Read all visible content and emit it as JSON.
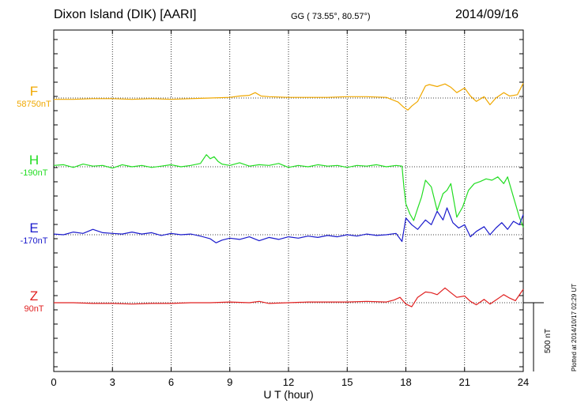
{
  "header": {
    "station": "Dixon Island (DIK)  [AARI]",
    "coords": "GG ( 73.55°,  80.57°)",
    "date": "2014/09/16"
  },
  "plotted_note": "Plotted at 2014/10/17 02:29 UT",
  "chart_data": {
    "type": "line",
    "xlabel": "U T (hour)",
    "xlim": [
      0,
      24
    ],
    "xticks": [
      0,
      3,
      6,
      9,
      12,
      15,
      18,
      21,
      24
    ],
    "ylabel": "",
    "scale_bar_label": "500 nT",
    "grid": true,
    "series": [
      {
        "name": "F",
        "baseline_label": "58750nT",
        "color": "#f0a800",
        "x": [
          0,
          1,
          2,
          3,
          4,
          5,
          6,
          7,
          8,
          9,
          9.5,
          10,
          10.3,
          10.6,
          11,
          12,
          13,
          14,
          15,
          16,
          17,
          17.6,
          17.9,
          18.1,
          18.3,
          18.6,
          19,
          19.2,
          19.6,
          20,
          20.3,
          20.6,
          21,
          21.3,
          21.6,
          22,
          22.3,
          22.6,
          23,
          23.3,
          23.7,
          24
        ],
        "values": [
          -2,
          -2,
          -1,
          -1,
          -2,
          -1,
          -2,
          -1,
          0,
          1,
          3,
          4,
          8,
          3,
          2,
          1,
          1,
          1,
          2,
          2,
          1,
          -6,
          -14,
          -18,
          -12,
          -5,
          18,
          20,
          17,
          21,
          16,
          8,
          15,
          3,
          -5,
          2,
          -10,
          0,
          8,
          3,
          5,
          22
        ]
      },
      {
        "name": "H",
        "baseline_label": "-190nT",
        "color": "#22dd22",
        "x": [
          0,
          0.5,
          1,
          1.5,
          2,
          2.5,
          3,
          3.5,
          4,
          4.5,
          5,
          5.5,
          6,
          6.5,
          7,
          7.5,
          7.8,
          8,
          8.2,
          8.4,
          8.6,
          9,
          9.5,
          10,
          10.5,
          11,
          11.5,
          12,
          12.5,
          13,
          13.5,
          14,
          14.5,
          15,
          15.5,
          16,
          16.5,
          17,
          17.5,
          17.8,
          17.9,
          18,
          18.2,
          18.4,
          18.6,
          18.8,
          19,
          19.3,
          19.6,
          19.9,
          20.1,
          20.3,
          20.6,
          20.9,
          21.2,
          21.5,
          21.8,
          22.1,
          22.4,
          22.7,
          23,
          23.2,
          23.5,
          23.8,
          24
        ],
        "values": [
          2,
          3,
          -1,
          4,
          1,
          2,
          -2,
          3,
          0,
          2,
          -1,
          1,
          3,
          0,
          2,
          5,
          18,
          12,
          15,
          8,
          4,
          2,
          6,
          1,
          3,
          2,
          5,
          -1,
          2,
          0,
          3,
          1,
          2,
          -1,
          2,
          1,
          3,
          0,
          2,
          1,
          -30,
          -55,
          -70,
          -80,
          -62,
          -45,
          -20,
          -30,
          -65,
          -40,
          -35,
          -25,
          -75,
          -60,
          -35,
          -25,
          -22,
          -18,
          -20,
          -15,
          -25,
          -15,
          -45,
          -75,
          -90
        ]
      },
      {
        "name": "E",
        "baseline_label": "-170nT",
        "color": "#1a1acc",
        "x": [
          0,
          0.5,
          1,
          1.5,
          2,
          2.5,
          3,
          3.5,
          4,
          4.5,
          5,
          5.5,
          6,
          6.5,
          7,
          7.5,
          8,
          8.3,
          8.6,
          9,
          9.5,
          10,
          10.5,
          11,
          11.5,
          12,
          12.5,
          13,
          13.5,
          14,
          14.5,
          15,
          15.5,
          16,
          16.5,
          17,
          17.5,
          17.8,
          18,
          18.3,
          18.6,
          19,
          19.3,
          19.6,
          19.9,
          20.1,
          20.4,
          20.7,
          21,
          21.3,
          21.6,
          22,
          22.3,
          22.6,
          22.9,
          23.2,
          23.5,
          23.8,
          24
        ],
        "values": [
          1,
          0,
          4,
          2,
          8,
          3,
          2,
          1,
          4,
          1,
          3,
          -1,
          2,
          0,
          1,
          -2,
          -6,
          -12,
          -8,
          -5,
          -7,
          -3,
          -9,
          -4,
          -7,
          -3,
          -5,
          -2,
          -4,
          -1,
          -3,
          0,
          -2,
          1,
          -1,
          0,
          2,
          -10,
          25,
          15,
          8,
          22,
          15,
          35,
          22,
          40,
          18,
          10,
          15,
          -3,
          5,
          12,
          0,
          10,
          18,
          8,
          20,
          15,
          30
        ]
      },
      {
        "name": "Z",
        "baseline_label": "90nT",
        "color": "#e02020",
        "x": [
          0,
          1,
          2,
          3,
          4,
          5,
          6,
          7,
          8,
          9,
          10,
          10.5,
          11,
          12,
          13,
          14,
          15,
          16,
          17,
          17.4,
          17.7,
          18,
          18.3,
          18.6,
          19,
          19.3,
          19.6,
          20,
          20.3,
          20.6,
          21,
          21.3,
          21.6,
          22,
          22.3,
          22.6,
          23,
          23.3,
          23.6,
          24
        ],
        "values": [
          0,
          0,
          -1,
          -1,
          -2,
          -1,
          -1,
          0,
          0,
          1,
          0,
          2,
          -1,
          0,
          1,
          1,
          1,
          2,
          1,
          4,
          8,
          -2,
          -6,
          8,
          16,
          15,
          12,
          22,
          15,
          8,
          10,
          2,
          -3,
          5,
          -2,
          4,
          12,
          7,
          3,
          20
        ]
      }
    ]
  }
}
